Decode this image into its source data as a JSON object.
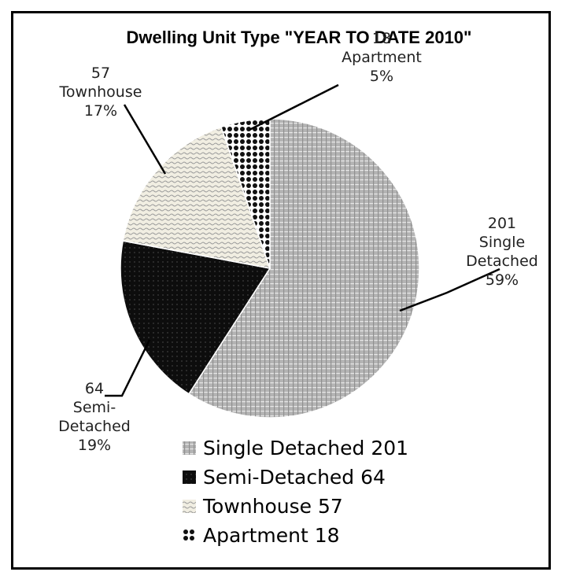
{
  "chart_data": {
    "type": "pie",
    "title": "Dwelling Unit Type \"YEAR TO DATE 2010\"",
    "slices": [
      {
        "name": "Single Detached",
        "value": 201,
        "percent": "59%",
        "pattern": "grid-light",
        "label_lines": [
          "201",
          "Single",
          "Detached",
          "59%"
        ],
        "legend": "Single Detached 201"
      },
      {
        "name": "Semi-Detached",
        "value": 64,
        "percent": "19%",
        "pattern": "solid-dark",
        "label_lines": [
          "64",
          "Semi-",
          "Detached",
          "19%"
        ],
        "legend": "Semi-Detached 64"
      },
      {
        "name": "Townhouse",
        "value": 57,
        "percent": "17%",
        "pattern": "wave",
        "label_lines": [
          "57",
          "Townhouse",
          "17%"
        ],
        "legend": "Townhouse 57"
      },
      {
        "name": "Apartment",
        "value": 18,
        "percent": "5%",
        "pattern": "dots",
        "label_lines": [
          "18",
          "Apartment",
          "5%"
        ],
        "legend": "Apartment 18"
      }
    ],
    "start_angle_deg": 0,
    "direction": "clockwise",
    "legend_placement": "bottom"
  },
  "colors": {
    "border": "#000000",
    "slice_outline": "#ffffff",
    "leader": "#000000"
  }
}
